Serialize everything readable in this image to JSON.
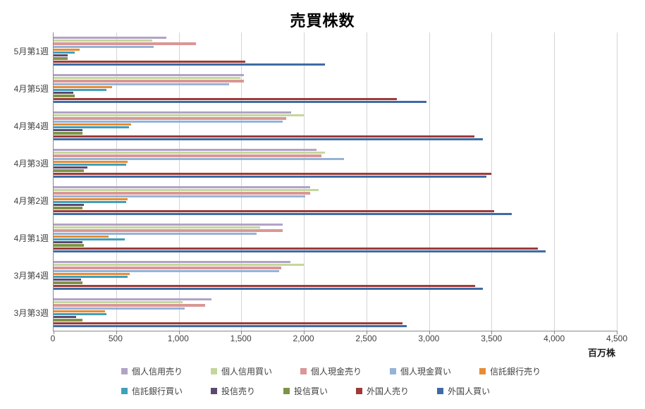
{
  "chart_data": {
    "type": "bar",
    "orientation": "horizontal",
    "title": "売買株数",
    "unit_label": "百万株",
    "grid": "vertical-major",
    "legend_position": "bottom",
    "xlim": [
      0,
      4500
    ],
    "x_ticks": [
      0,
      500,
      1000,
      1500,
      2000,
      2500,
      3000,
      3500,
      4000,
      4500
    ],
    "x_tick_labels": [
      "0",
      "500",
      "1,000",
      "1,500",
      "2,000",
      "2,500",
      "3,000",
      "3,500",
      "4,000",
      "4,500"
    ],
    "categories": [
      "5月第1週",
      "4月第5週",
      "4月第4週",
      "4月第3週",
      "4月第2週",
      "4月第1週",
      "3月第4週",
      "3月第3週"
    ],
    "series": [
      {
        "name": "個人信用売り",
        "color": "#b2a2c7",
        "values": [
          900,
          1520,
          1900,
          2100,
          2050,
          1830,
          1890,
          1260
        ]
      },
      {
        "name": "個人信用買い",
        "color": "#c4d79b",
        "values": [
          790,
          1490,
          2000,
          2170,
          2120,
          1650,
          2000,
          1030
        ]
      },
      {
        "name": "個人現金売り",
        "color": "#d99795",
        "values": [
          1140,
          1520,
          1860,
          2140,
          2050,
          1830,
          1820,
          1210
        ]
      },
      {
        "name": "個人現金買い",
        "color": "#95b3d7",
        "values": [
          800,
          1400,
          1830,
          2320,
          2010,
          1620,
          1800,
          1050
        ]
      },
      {
        "name": "信託銀行売り",
        "color": "#e78c35",
        "values": [
          210,
          470,
          620,
          590,
          590,
          440,
          610,
          410
        ]
      },
      {
        "name": "信託銀行買い",
        "color": "#3fa0ba",
        "values": [
          170,
          420,
          600,
          580,
          580,
          570,
          590,
          420
        ]
      },
      {
        "name": "投信売り",
        "color": "#5c4971",
        "values": [
          110,
          160,
          230,
          270,
          240,
          230,
          220,
          180
        ]
      },
      {
        "name": "投信買い",
        "color": "#7d9446",
        "values": [
          110,
          170,
          230,
          240,
          230,
          240,
          230,
          230
        ]
      },
      {
        "name": "外国人売り",
        "color": "#9e3b38",
        "values": [
          1530,
          2740,
          3360,
          3500,
          3520,
          3870,
          3370,
          2790
        ]
      },
      {
        "name": "外国人買い",
        "color": "#3e6ba5",
        "values": [
          2170,
          2980,
          3430,
          3460,
          3660,
          3930,
          3430,
          2820
        ]
      }
    ]
  },
  "style": {
    "grid_color": "#d4d4d4",
    "axis_color": "#898989",
    "text_color": "#3f3f3f"
  }
}
